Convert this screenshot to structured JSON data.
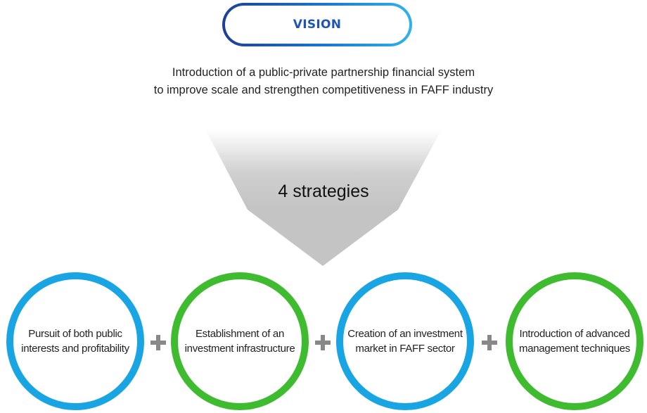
{
  "vision": {
    "label": "VISION",
    "line1": "Introduction of a public-private partnership financial system",
    "line2": "to improve scale and strengthen competitiveness in FAFF industry"
  },
  "arrow": {
    "label": "4 strategies"
  },
  "strategies": [
    {
      "text": "Pursuit of both public interests and profitability",
      "color": "#19a5e3"
    },
    {
      "text": "Establishment of an investment infrastructure",
      "color": "#3fbb2f"
    },
    {
      "text": "Creation of an investment market in FAFF sector",
      "color": "#19a5e3"
    },
    {
      "text": "Introduction of advanced management techniques",
      "color": "#3fbb2f"
    }
  ],
  "colors": {
    "vision_gradient_start": "#1e3f96",
    "vision_gradient_end": "#2fb3ea",
    "vision_label": "#1f55b4",
    "arrow_gray": "#c6c6c6",
    "plus_gray": "#888888"
  }
}
